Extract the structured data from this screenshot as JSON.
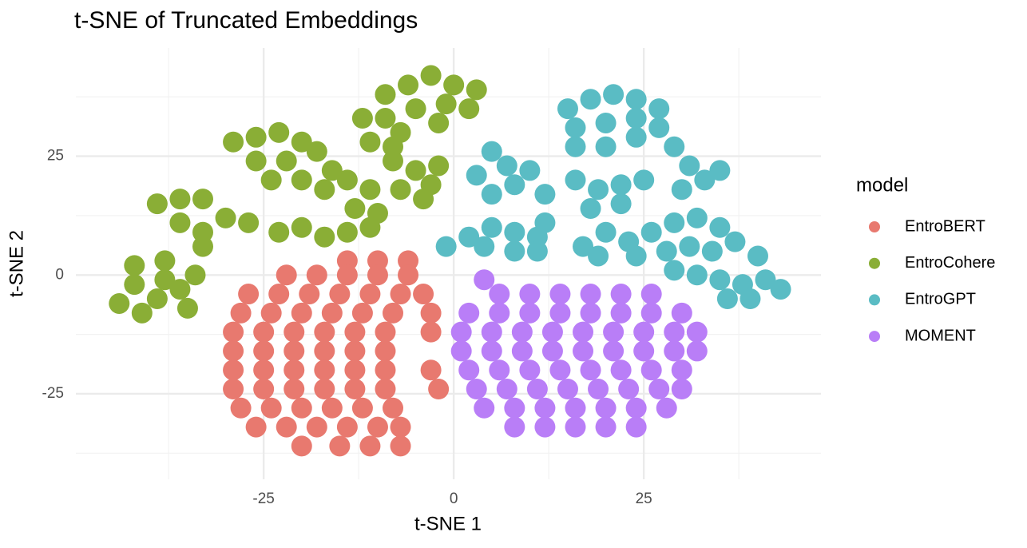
{
  "chart_data": {
    "type": "scatter",
    "title": "t-SNE of Truncated Embeddings",
    "x_label": "t-SNE 1",
    "y_label": "t-SNE 2",
    "legend_title": "model",
    "legend_position": "right",
    "xlim": [
      -49.7,
      48.3
    ],
    "ylim": [
      -43,
      47.8
    ],
    "xticks": [
      -25,
      0,
      25
    ],
    "yticks": [
      -25,
      0,
      25
    ],
    "x_minor_ticks": [
      -37.5,
      -12.5,
      12.5,
      37.5
    ],
    "y_minor_ticks": [
      -37.5,
      -12.5,
      12.5,
      37.5
    ],
    "grid": true,
    "series": [
      {
        "name": "EntroBERT",
        "color": "#e8796f",
        "x": [
          -14,
          -10,
          -6,
          -22,
          -18,
          -14,
          -10,
          -6,
          -27,
          -23,
          -19,
          -15,
          -11,
          -7,
          -4,
          -28,
          -24,
          -20,
          -16,
          -12,
          -8,
          -3,
          -29,
          -25,
          -21,
          -17,
          -13,
          -9,
          -3,
          -29,
          -25,
          -21,
          -17,
          -13,
          -9,
          -29,
          -25,
          -21,
          -17,
          -13,
          -9,
          -3,
          -29,
          -25,
          -21,
          -17,
          -13,
          -9,
          -2,
          -28,
          -24,
          -20,
          -16,
          -12,
          -8,
          -26,
          -22,
          -18,
          -14,
          -10,
          -7,
          -20,
          -15,
          -11,
          -7
        ],
        "y": [
          3,
          3,
          3,
          0,
          0,
          0,
          0,
          0,
          -4,
          -4,
          -4,
          -4,
          -4,
          -4,
          -4,
          -8,
          -8,
          -8,
          -8,
          -8,
          -8,
          -8,
          -12,
          -12,
          -12,
          -12,
          -12,
          -12,
          -12,
          -16,
          -16,
          -16,
          -16,
          -16,
          -16,
          -20,
          -20,
          -20,
          -20,
          -20,
          -20,
          -20,
          -24,
          -24,
          -24,
          -24,
          -24,
          -24,
          -24,
          -28,
          -28,
          -28,
          -28,
          -28,
          -28,
          -32,
          -32,
          -32,
          -32,
          -32,
          -32,
          -36,
          -36,
          -36,
          -36
        ]
      },
      {
        "name": "EntroCohere",
        "color": "#8aae36",
        "x": [
          -44,
          -42,
          -42,
          -39,
          -38,
          -38,
          -36,
          -35,
          -41,
          -34,
          -39,
          -36,
          -33,
          -36,
          -33,
          -30,
          -27,
          -33,
          -29,
          -26,
          -23,
          -20,
          -26,
          -22,
          -18,
          -24,
          -20,
          -16,
          -17,
          -14,
          -11,
          -13,
          -10,
          -23,
          -20,
          -17,
          -14,
          -11,
          -12,
          -9,
          -6,
          -3,
          0,
          3,
          -9,
          -5,
          -1,
          2,
          -7,
          -2,
          -11,
          -8,
          -5,
          -3,
          -7,
          -4,
          -2,
          -8
        ],
        "y": [
          -6,
          -2,
          2,
          -5,
          -1,
          3,
          -3,
          -7,
          -8,
          0,
          15,
          16,
          16,
          11,
          9,
          12,
          11,
          6,
          28,
          29,
          30,
          28,
          24,
          24,
          26,
          20,
          20,
          22,
          18,
          20,
          18,
          14,
          13,
          9,
          10,
          8,
          9,
          10,
          33,
          38,
          40,
          42,
          40,
          39,
          33,
          35,
          36,
          35,
          30,
          32,
          28,
          24,
          22,
          19,
          18,
          16,
          23,
          27
        ]
      },
      {
        "name": "EntroGPT",
        "color": "#5abcc4",
        "x": [
          -1,
          2,
          5,
          8,
          11,
          4,
          8,
          11,
          12,
          3,
          5,
          7,
          5,
          8,
          10,
          12,
          15,
          18,
          21,
          24,
          27,
          16,
          20,
          24,
          27,
          16,
          20,
          24,
          16,
          19,
          22,
          25,
          18,
          22,
          29,
          31,
          33,
          35,
          30,
          17,
          20,
          23,
          26,
          19,
          24,
          29,
          32,
          35,
          28,
          31,
          34,
          37,
          40,
          29,
          32,
          35,
          38,
          41,
          43,
          36,
          39
        ],
        "y": [
          6,
          8,
          10,
          9,
          8,
          6,
          5,
          5,
          11,
          21,
          26,
          23,
          17,
          19,
          22,
          17,
          35,
          37,
          38,
          37,
          35,
          31,
          32,
          33,
          31,
          27,
          27,
          29,
          20,
          18,
          19,
          20,
          14,
          15,
          27,
          23,
          20,
          22,
          18,
          6,
          9,
          7,
          9,
          4,
          4,
          11,
          12,
          10,
          5,
          6,
          5,
          7,
          4,
          1,
          0,
          -1,
          -2,
          -1,
          -3,
          -5,
          -5
        ]
      },
      {
        "name": "MOMENT",
        "color": "#b97ef7",
        "x": [
          4,
          6,
          10,
          14,
          18,
          22,
          26,
          2,
          6,
          10,
          14,
          18,
          22,
          26,
          30,
          1,
          5,
          9,
          13,
          17,
          21,
          25,
          29,
          32,
          1,
          5,
          9,
          13,
          17,
          21,
          25,
          29,
          32,
          2,
          6,
          10,
          14,
          18,
          22,
          26,
          30,
          3,
          7,
          11,
          15,
          19,
          23,
          27,
          30,
          4,
          8,
          12,
          16,
          20,
          24,
          28,
          8,
          12,
          16,
          20,
          24
        ],
        "y": [
          -1,
          -4,
          -4,
          -4,
          -4,
          -4,
          -4,
          -8,
          -8,
          -8,
          -8,
          -8,
          -8,
          -8,
          -8,
          -12,
          -12,
          -12,
          -12,
          -12,
          -12,
          -12,
          -12,
          -12,
          -16,
          -16,
          -16,
          -16,
          -16,
          -16,
          -16,
          -16,
          -16,
          -20,
          -20,
          -20,
          -20,
          -20,
          -20,
          -20,
          -20,
          -24,
          -24,
          -24,
          -24,
          -24,
          -24,
          -24,
          -24,
          -28,
          -28,
          -28,
          -28,
          -28,
          -28,
          -28,
          -32,
          -32,
          -32,
          -32,
          -32
        ]
      }
    ]
  }
}
